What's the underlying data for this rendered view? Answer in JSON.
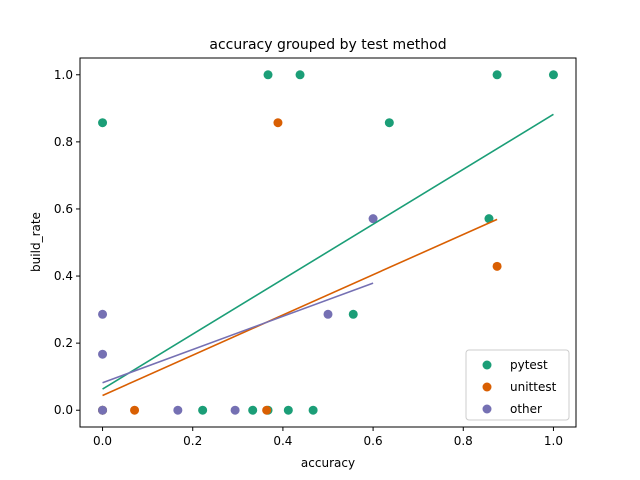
{
  "chart_data": {
    "type": "scatter",
    "title": "accuracy grouped by test method",
    "xlabel": "accuracy",
    "ylabel": "build_rate",
    "xlim": [
      -0.05,
      1.05
    ],
    "ylim": [
      -0.05,
      1.05
    ],
    "xticks": [
      "0.0",
      "0.2",
      "0.4",
      "0.6",
      "0.8",
      "1.0"
    ],
    "yticks": [
      "0.0",
      "0.2",
      "0.4",
      "0.6",
      "0.8",
      "1.0"
    ],
    "grid": false,
    "legend_position": "lower right",
    "series": [
      {
        "name": "pytest",
        "color": "#1b9e77",
        "points": [
          [
            0.0,
            0.857
          ],
          [
            0.0,
            0.0
          ],
          [
            0.222,
            0.0
          ],
          [
            0.333,
            0.0
          ],
          [
            0.367,
            1.0
          ],
          [
            0.367,
            0.0
          ],
          [
            0.412,
            0.0
          ],
          [
            0.438,
            1.0
          ],
          [
            0.467,
            0.0
          ],
          [
            0.556,
            0.286
          ],
          [
            0.636,
            0.857
          ],
          [
            0.857,
            0.571
          ],
          [
            0.875,
            1.0
          ],
          [
            1.0,
            1.0
          ]
        ],
        "trend": {
          "x": [
            0.0,
            1.0
          ],
          "y": [
            0.063,
            0.882
          ]
        }
      },
      {
        "name": "unittest",
        "color": "#d95f02",
        "points": [
          [
            0.0,
            0.0
          ],
          [
            0.071,
            0.0
          ],
          [
            0.364,
            0.0
          ],
          [
            0.389,
            0.857
          ],
          [
            0.875,
            0.429
          ]
        ],
        "trend": {
          "x": [
            0.0,
            0.875
          ],
          "y": [
            0.044,
            0.569
          ]
        }
      },
      {
        "name": "other",
        "color": "#7570b3",
        "points": [
          [
            0.0,
            0.286
          ],
          [
            0.0,
            0.167
          ],
          [
            0.0,
            0.0
          ],
          [
            0.167,
            0.0
          ],
          [
            0.294,
            0.0
          ],
          [
            0.5,
            0.286
          ],
          [
            0.6,
            0.571
          ]
        ],
        "trend": {
          "x": [
            0.0,
            0.6
          ],
          "y": [
            0.082,
            0.379
          ]
        }
      }
    ]
  }
}
